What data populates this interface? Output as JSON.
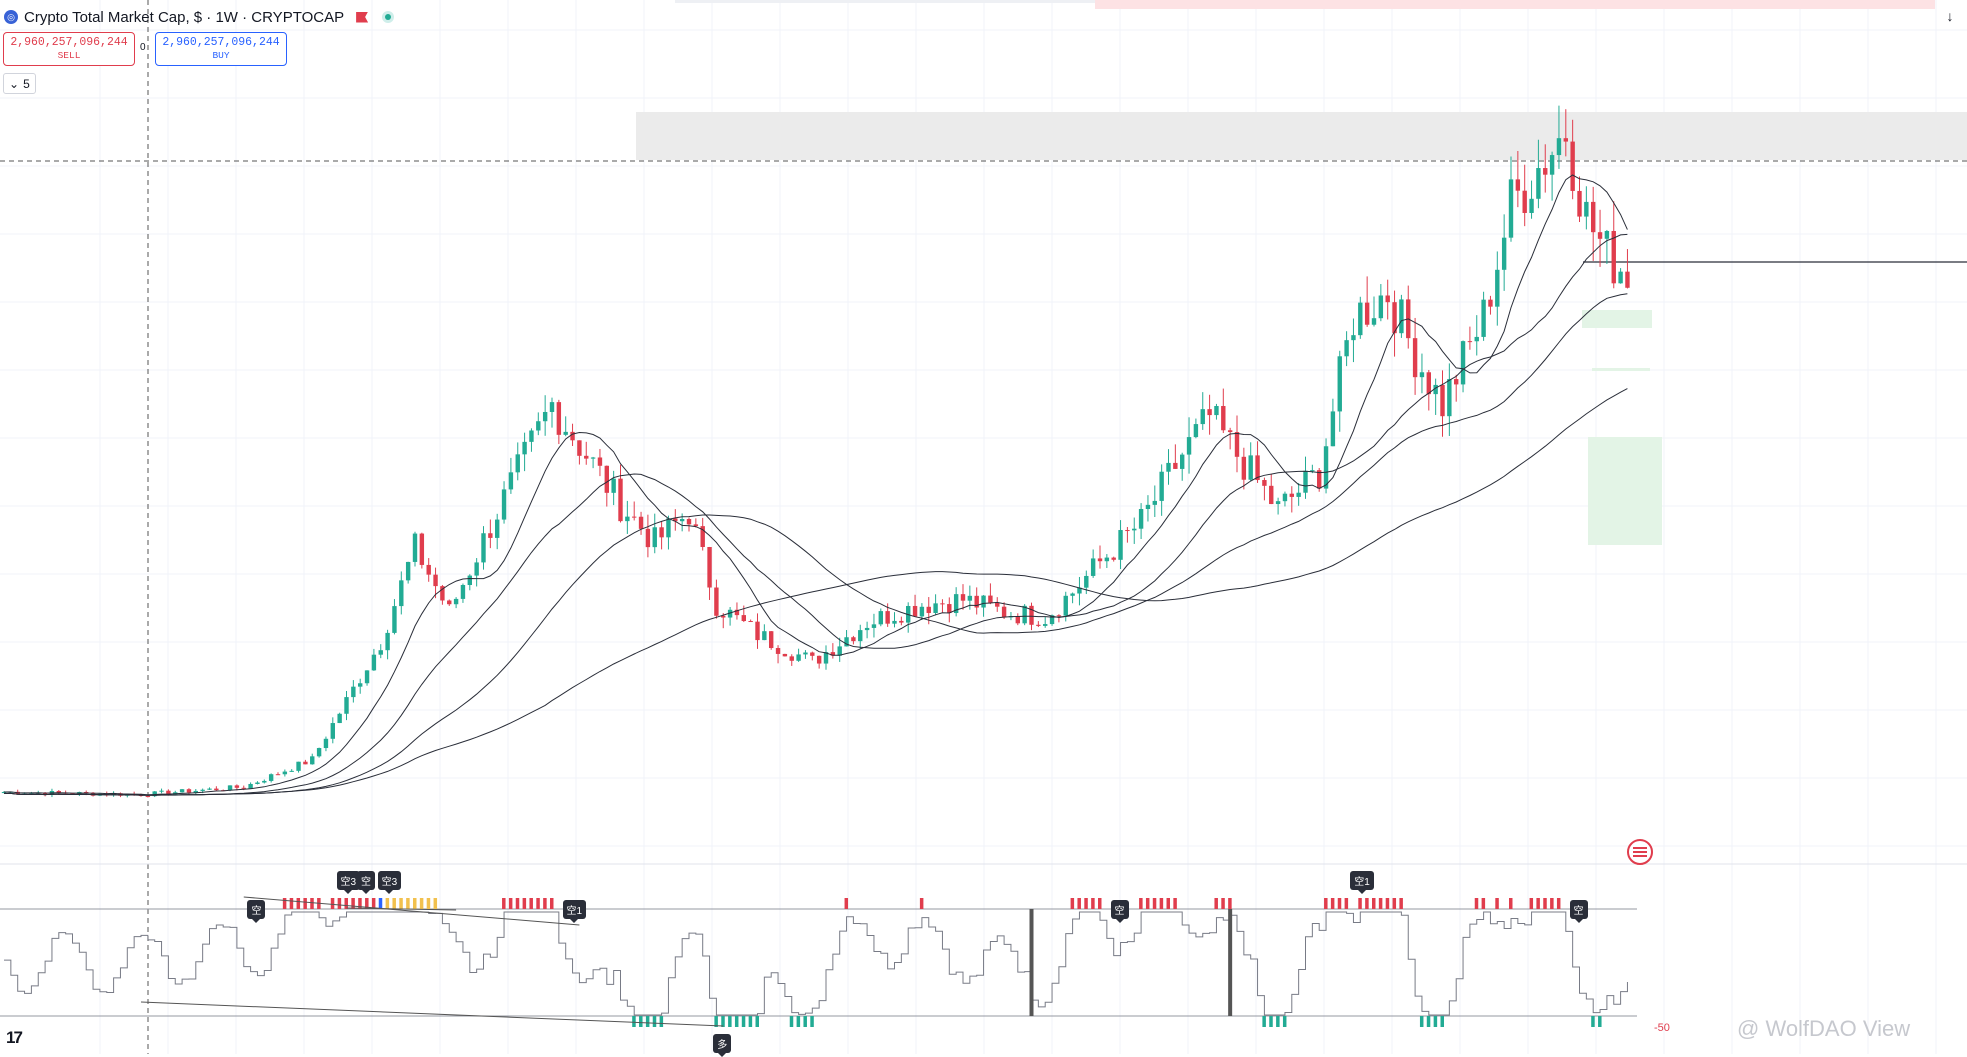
{
  "header": {
    "title": "Crypto Total Market Cap, $ · 1W · CRYPTOCAP",
    "logo_icon": "crypto-cap-icon"
  },
  "trade": {
    "sell_price": "2,960,257,096,244",
    "sell_label": "SELL",
    "spread": "0",
    "buy_price": "2,960,257,096,244",
    "buy_label": "BUY"
  },
  "indicators_toggle": {
    "count": "5"
  },
  "oscillator": {
    "bottom_value": "-50",
    "signals": [
      {
        "text": "空",
        "idx": 37
      },
      {
        "text": "空3",
        "idx": 50
      },
      {
        "text": "空",
        "idx": 53
      },
      {
        "text": "空3",
        "idx": 56
      },
      {
        "text": "空1",
        "idx": 83
      },
      {
        "text": "多",
        "idx": 105
      },
      {
        "text": "空",
        "idx": 163
      },
      {
        "text": "空1",
        "idx": 198
      },
      {
        "text": "空",
        "idx": 230
      }
    ]
  },
  "watermark": "@ WolfDAO View",
  "colors": {
    "up": "#22ab94",
    "down": "#e03d4d",
    "ma": "#2a2e39"
  },
  "chart_data": {
    "type": "candlestick",
    "title": "Crypto Total Market Cap, $ · 1W · CRYPTOCAP",
    "interval": "1W",
    "series_count": 238,
    "anchors": [
      [
        0,
        0.2
      ],
      [
        20,
        0.19
      ],
      [
        35,
        0.22
      ],
      [
        45,
        0.33
      ],
      [
        55,
        0.8
      ],
      [
        60,
        1.18
      ],
      [
        65,
        0.92
      ],
      [
        72,
        1.32
      ],
      [
        80,
        1.75
      ],
      [
        85,
        1.55
      ],
      [
        90,
        1.35
      ],
      [
        95,
        1.2
      ],
      [
        100,
        1.32
      ],
      [
        104,
        0.95
      ],
      [
        110,
        0.83
      ],
      [
        118,
        0.72
      ],
      [
        126,
        0.88
      ],
      [
        134,
        0.95
      ],
      [
        140,
        0.97
      ],
      [
        146,
        0.92
      ],
      [
        152,
        0.9
      ],
      [
        156,
        1.0
      ],
      [
        160,
        1.12
      ],
      [
        166,
        1.28
      ],
      [
        172,
        1.55
      ],
      [
        176,
        1.7
      ],
      [
        180,
        1.55
      ],
      [
        186,
        1.33
      ],
      [
        192,
        1.48
      ],
      [
        197,
        2.1
      ],
      [
        202,
        2.2
      ],
      [
        206,
        1.95
      ],
      [
        210,
        1.75
      ],
      [
        216,
        2.1
      ],
      [
        220,
        2.55
      ],
      [
        224,
        2.7
      ],
      [
        228,
        2.85
      ],
      [
        231,
        2.5
      ],
      [
        234,
        2.35
      ],
      [
        237,
        2.28
      ]
    ],
    "moving_averages": [
      "MA-short",
      "MA-mid",
      "MA-long",
      "MA-xlong"
    ],
    "grid": true
  }
}
